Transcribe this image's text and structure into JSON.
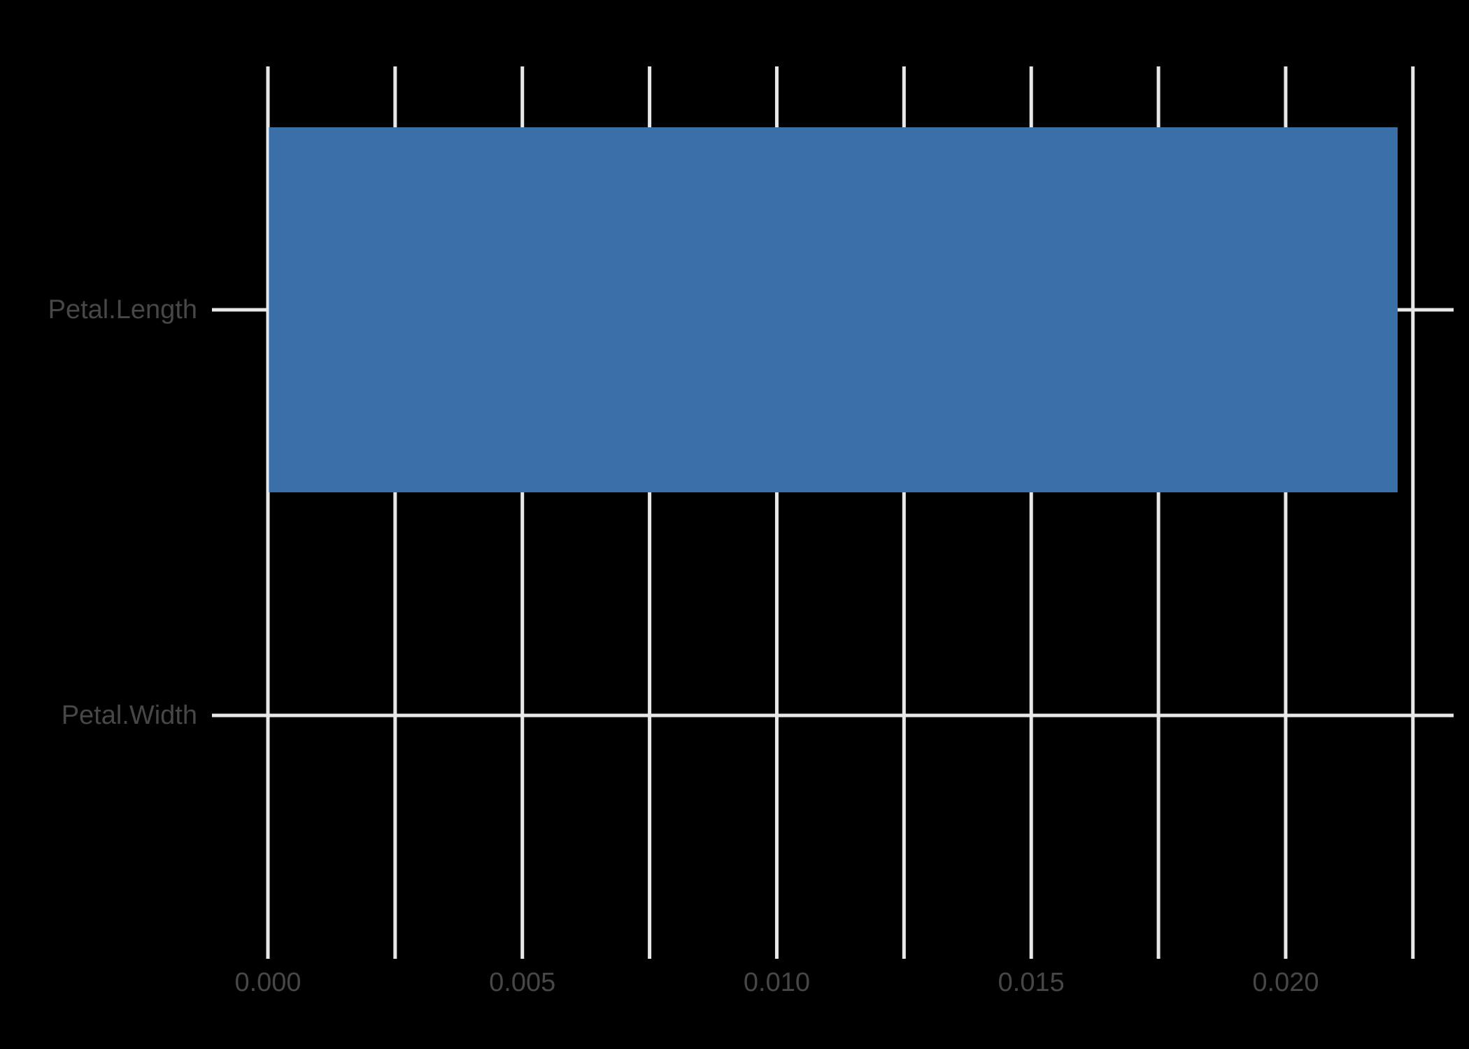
{
  "chart_data": {
    "type": "bar",
    "orientation": "horizontal",
    "title": "",
    "xlabel": "",
    "ylabel": "",
    "categories": [
      "Petal.Length",
      "Petal.Width"
    ],
    "values": [
      0.0222,
      0
    ],
    "xlim": [
      0,
      0.0233
    ],
    "x_major_ticks": [
      0,
      0.005,
      0.01,
      0.015,
      0.02
    ],
    "x_major_tick_labels": [
      "0.000",
      "0.005",
      "0.010",
      "0.015",
      "0.020"
    ],
    "x_minor_ticks": [
      0.0025,
      0.0075,
      0.0125,
      0.0175,
      0.0225
    ],
    "grid": true,
    "legend": false,
    "bar_width_fraction": 0.9,
    "colors": {
      "background": "#000000",
      "bar_fill": "#3a6fa8",
      "gridline": "#e8e8e8",
      "tick_mark": "#e8e8e8",
      "axis_text": "#474747"
    }
  }
}
